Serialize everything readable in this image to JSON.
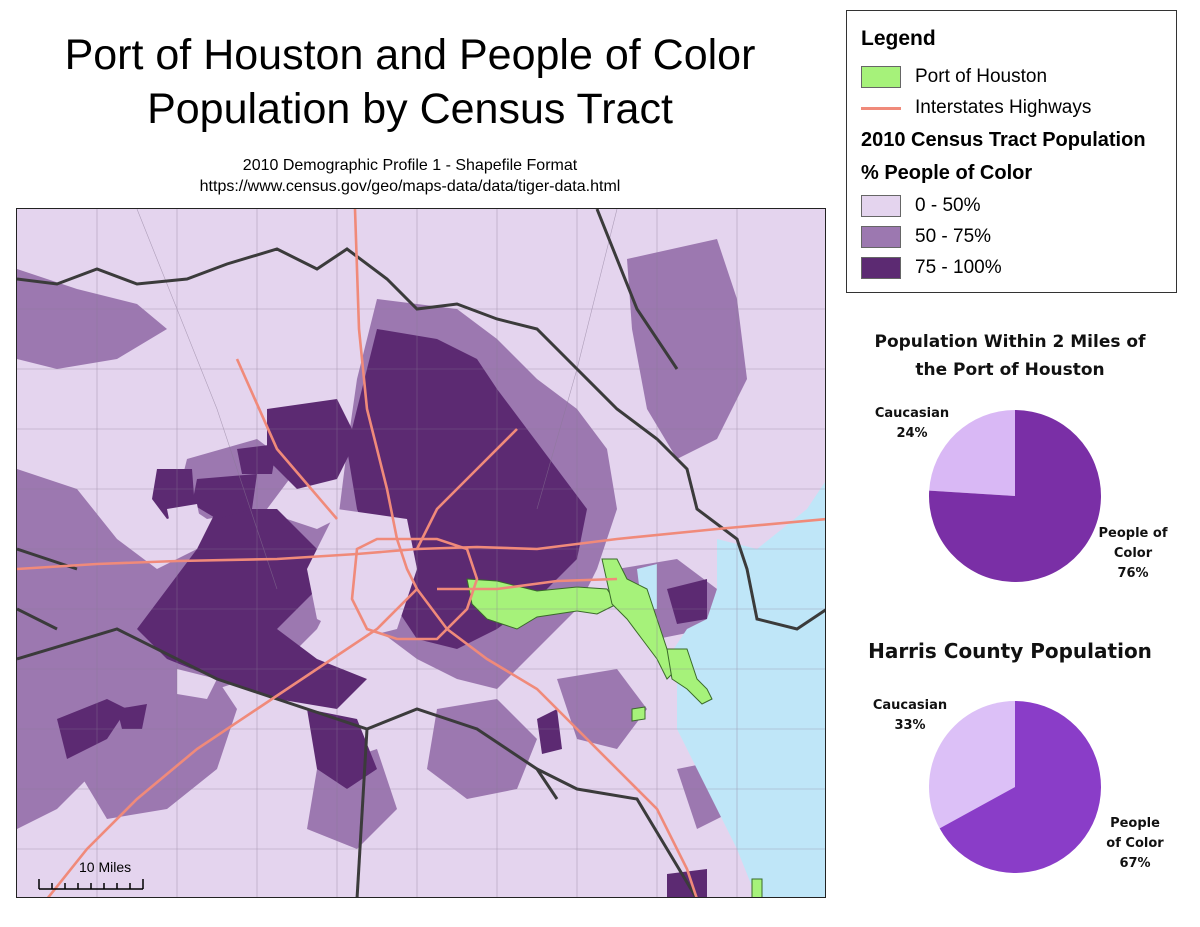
{
  "title_line1": "Port of Houston and People of Color",
  "title_line2": "Population by Census Tract",
  "subtitle_line1": "2010 Demographic Profile 1 - Shapefile Format",
  "subtitle_line2": "https://www.census.gov/geo/maps-data/data/tiger-data.html",
  "scale_label": "10 Miles",
  "legend": {
    "title": "Legend",
    "port_label": "Port of Houston",
    "highway_label": "Interstates Highways",
    "population_heading": "2010 Census Tract Population",
    "metric_heading": "% People of Color",
    "classes": [
      {
        "label": "0 - 50%",
        "color": "#e4d4ee"
      },
      {
        "label": "50 - 75%",
        "color": "#9c78b0"
      },
      {
        "label": "75 - 100%",
        "color": "#5c2a72"
      }
    ],
    "port_color": "#a6f27a",
    "highway_color": "#f08a7a",
    "water_color": "#bfe6f8"
  },
  "chart_data": [
    {
      "type": "pie",
      "title_line1": "Population Within 2 Miles of",
      "title_line2": "the Port of Houston",
      "slices": [
        {
          "label_line1": "Caucasian",
          "label_line2": "24%",
          "value": 24,
          "color": "#d9b8f5"
        },
        {
          "label_line1": "People of",
          "label_line2": "Color",
          "label_line3": "76%",
          "value": 76,
          "color": "#7a2fa6"
        }
      ]
    },
    {
      "type": "pie",
      "title": "Harris County Population",
      "slices": [
        {
          "label_line1": "Caucasian",
          "label_line2": "33%",
          "value": 33,
          "color": "#dcc0f7"
        },
        {
          "label_line1": "People",
          "label_line2": "of Color",
          "label_line3": "67%",
          "value": 67,
          "color": "#8a3dc8"
        }
      ]
    }
  ]
}
